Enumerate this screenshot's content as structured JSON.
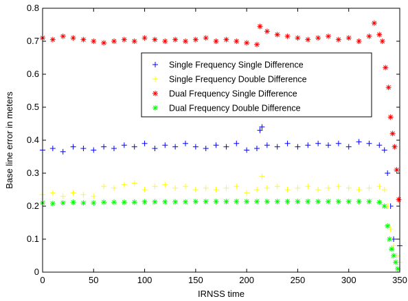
{
  "chart_data": {
    "type": "scatter",
    "title": "",
    "xlabel": "IRNSS time",
    "ylabel": "Base line error in meters",
    "xlim": [
      0,
      350
    ],
    "ylim": [
      0,
      0.8
    ],
    "xticks": [
      "0",
      "50",
      "100",
      "150",
      "200",
      "250",
      "300",
      "350"
    ],
    "yticks": [
      "0",
      "0.1",
      "0.2",
      "0.3",
      "0.4",
      "0.5",
      "0.6",
      "0.7",
      "0.8"
    ],
    "grid": false,
    "legend_position": "inside-right",
    "series": [
      {
        "name": "Single Frequency Single Difference",
        "marker": "plus",
        "color": "#0000ff",
        "x": [
          0,
          10,
          20,
          30,
          40,
          50,
          60,
          70,
          80,
          90,
          100,
          110,
          120,
          130,
          140,
          150,
          160,
          170,
          180,
          190,
          200,
          210,
          213,
          215,
          220,
          230,
          240,
          250,
          260,
          270,
          280,
          290,
          300,
          310,
          320,
          330,
          335,
          338,
          341,
          344,
          347,
          350
        ],
        "y": [
          0.37,
          0.375,
          0.365,
          0.38,
          0.375,
          0.37,
          0.38,
          0.375,
          0.385,
          0.38,
          0.39,
          0.375,
          0.385,
          0.38,
          0.39,
          0.38,
          0.375,
          0.385,
          0.38,
          0.39,
          0.37,
          0.375,
          0.43,
          0.44,
          0.385,
          0.38,
          0.39,
          0.38,
          0.385,
          0.39,
          0.385,
          0.39,
          0.38,
          0.395,
          0.39,
          0.385,
          0.37,
          0.3,
          0.2,
          0.1,
          0.05,
          0.08
        ]
      },
      {
        "name": "Single Frequency Double Difference",
        "marker": "plus",
        "color": "#ffff00",
        "x": [
          0,
          10,
          20,
          30,
          40,
          50,
          60,
          70,
          80,
          90,
          100,
          110,
          120,
          130,
          140,
          150,
          160,
          170,
          180,
          190,
          200,
          210,
          215,
          220,
          230,
          240,
          250,
          260,
          270,
          280,
          290,
          300,
          310,
          320,
          330,
          335,
          338,
          341,
          344,
          347,
          350
        ],
        "y": [
          0.235,
          0.24,
          0.23,
          0.24,
          0.235,
          0.23,
          0.26,
          0.255,
          0.265,
          0.27,
          0.25,
          0.26,
          0.265,
          0.255,
          0.26,
          0.25,
          0.255,
          0.25,
          0.255,
          0.26,
          0.24,
          0.25,
          0.29,
          0.255,
          0.26,
          0.25,
          0.255,
          0.26,
          0.25,
          0.255,
          0.26,
          0.255,
          0.25,
          0.255,
          0.26,
          0.25,
          0.2,
          0.13,
          0.08,
          0.05,
          0.03
        ]
      },
      {
        "name": "Dual Frequency Single Difference",
        "marker": "star",
        "color": "#ff0000",
        "x": [
          0,
          10,
          20,
          30,
          40,
          50,
          60,
          70,
          80,
          90,
          100,
          110,
          120,
          130,
          140,
          150,
          160,
          170,
          180,
          190,
          200,
          210,
          213,
          220,
          230,
          240,
          250,
          260,
          270,
          280,
          290,
          300,
          310,
          320,
          325,
          330,
          333,
          336,
          339,
          341,
          343,
          345,
          347,
          349
        ],
        "y": [
          0.71,
          0.705,
          0.715,
          0.71,
          0.705,
          0.7,
          0.695,
          0.7,
          0.705,
          0.7,
          0.71,
          0.705,
          0.7,
          0.705,
          0.7,
          0.705,
          0.71,
          0.7,
          0.705,
          0.7,
          0.695,
          0.69,
          0.745,
          0.73,
          0.72,
          0.715,
          0.71,
          0.705,
          0.71,
          0.715,
          0.705,
          0.71,
          0.7,
          0.715,
          0.755,
          0.72,
          0.7,
          0.62,
          0.56,
          0.47,
          0.42,
          0.38,
          0.31,
          0.22
        ]
      },
      {
        "name": "Dual Frequency Double Difference",
        "marker": "star",
        "color": "#00ff00",
        "x": [
          0,
          10,
          20,
          30,
          40,
          50,
          60,
          70,
          80,
          90,
          100,
          110,
          120,
          130,
          140,
          150,
          160,
          170,
          180,
          190,
          200,
          210,
          220,
          230,
          240,
          250,
          260,
          270,
          280,
          290,
          300,
          310,
          320,
          330,
          335,
          338,
          340,
          342,
          344,
          346,
          348
        ],
        "y": [
          0.21,
          0.208,
          0.21,
          0.212,
          0.21,
          0.21,
          0.212,
          0.212,
          0.212,
          0.212,
          0.213,
          0.213,
          0.213,
          0.213,
          0.213,
          0.214,
          0.214,
          0.214,
          0.214,
          0.214,
          0.214,
          0.214,
          0.214,
          0.214,
          0.214,
          0.214,
          0.214,
          0.214,
          0.214,
          0.214,
          0.214,
          0.214,
          0.214,
          0.212,
          0.2,
          0.14,
          0.1,
          0.07,
          0.05,
          0.03,
          0.01
        ]
      }
    ]
  }
}
